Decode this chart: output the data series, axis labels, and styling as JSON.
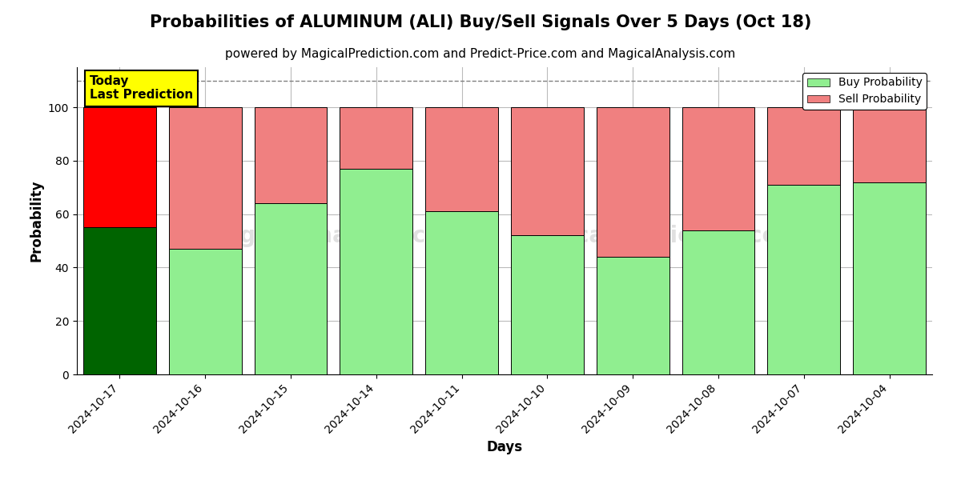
{
  "title": "Probabilities of ALUMINUM (ALI) Buy/Sell Signals Over 5 Days (Oct 18)",
  "subtitle": "powered by MagicalPrediction.com and Predict-Price.com and MagicalAnalysis.com",
  "xlabel": "Days",
  "ylabel": "Probability",
  "categories": [
    "2024-10-17",
    "2024-10-16",
    "2024-10-15",
    "2024-10-14",
    "2024-10-11",
    "2024-10-10",
    "2024-10-09",
    "2024-10-08",
    "2024-10-07",
    "2024-10-04"
  ],
  "buy_values": [
    55,
    47,
    64,
    77,
    61,
    52,
    44,
    54,
    71,
    72
  ],
  "sell_values": [
    45,
    53,
    36,
    23,
    39,
    48,
    56,
    46,
    29,
    28
  ],
  "buy_colors": [
    "#006400",
    "#90EE90",
    "#90EE90",
    "#90EE90",
    "#90EE90",
    "#90EE90",
    "#90EE90",
    "#90EE90",
    "#90EE90",
    "#90EE90"
  ],
  "sell_colors": [
    "#FF0000",
    "#F08080",
    "#F08080",
    "#F08080",
    "#F08080",
    "#F08080",
    "#F08080",
    "#F08080",
    "#F08080",
    "#F08080"
  ],
  "buy_legend_color": "#90EE90",
  "sell_legend_color": "#F08080",
  "today_label": "Today\nLast Prediction",
  "today_label_bg": "#FFFF00",
  "dashed_line_y": 110,
  "ylim": [
    0,
    115
  ],
  "yticks": [
    0,
    20,
    40,
    60,
    80,
    100
  ],
  "bar_width": 0.85,
  "background_color": "#ffffff",
  "grid_color": "#bbbbbb",
  "title_fontsize": 15,
  "subtitle_fontsize": 11
}
